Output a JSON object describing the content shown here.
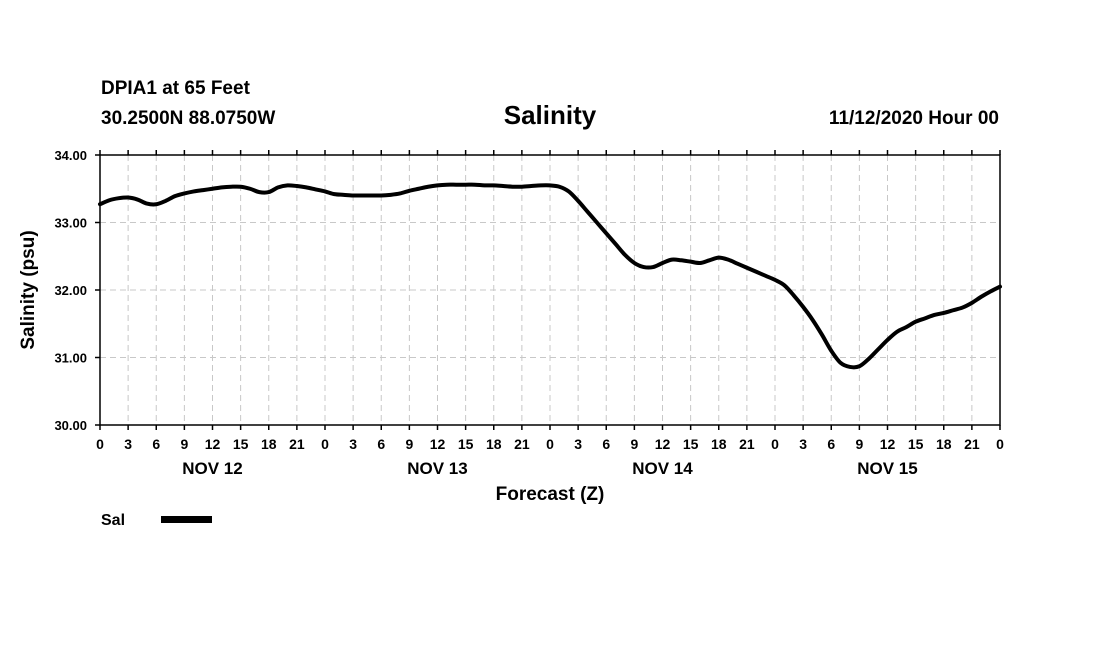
{
  "chart_data": {
    "type": "line",
    "title": "Salinity",
    "station_line1": "DPIA1 at 65 Feet",
    "station_line2": "30.2500N 88.0750W",
    "run_label": "11/12/2020 Hour 00",
    "xlabel": "Forecast (Z)",
    "ylabel": "Salinity (psu)",
    "ylim": [
      30.0,
      34.0
    ],
    "yticks": [
      "30.00",
      "31.00",
      "32.00",
      "33.00",
      "34.00"
    ],
    "xlim": [
      0,
      96
    ],
    "xtick_step_hours": 3,
    "xtick_labels": [
      "0",
      "3",
      "6",
      "9",
      "12",
      "15",
      "18",
      "21",
      "0",
      "3",
      "6",
      "9",
      "12",
      "15",
      "18",
      "21",
      "0",
      "3",
      "6",
      "9",
      "12",
      "15",
      "18",
      "21",
      "0",
      "3",
      "6",
      "9",
      "12",
      "15",
      "18",
      "21",
      "0"
    ],
    "day_labels": [
      {
        "label": "NOV 12",
        "hour": 12
      },
      {
        "label": "NOV 13",
        "hour": 36
      },
      {
        "label": "NOV 14",
        "hour": 60
      },
      {
        "label": "NOV 15",
        "hour": 84
      }
    ],
    "grid": true,
    "legend": {
      "label": "Sal",
      "placement": "bottom-left",
      "color": "#000000"
    },
    "series": [
      {
        "name": "Sal",
        "color": "#000000",
        "x": [
          0,
          1,
          2,
          3,
          4,
          5,
          6,
          7,
          8,
          9,
          10,
          11,
          12,
          13,
          14,
          15,
          16,
          17,
          18,
          19,
          20,
          21,
          22,
          23,
          24,
          25,
          26,
          27,
          28,
          29,
          30,
          31,
          32,
          33,
          34,
          35,
          36,
          37,
          38,
          39,
          40,
          41,
          42,
          43,
          44,
          45,
          46,
          47,
          48,
          49,
          50,
          51,
          52,
          53,
          54,
          55,
          56,
          57,
          58,
          59,
          60,
          61,
          62,
          63,
          64,
          65,
          66,
          67,
          68,
          69,
          70,
          71,
          72,
          73,
          74,
          75,
          76,
          77,
          78,
          79,
          80,
          81,
          82,
          83,
          84,
          85,
          86,
          87,
          88,
          89,
          90,
          91,
          92,
          93,
          94,
          95,
          96
        ],
        "values": [
          33.27,
          33.33,
          33.36,
          33.37,
          33.34,
          33.28,
          33.27,
          33.32,
          33.39,
          33.43,
          33.46,
          33.48,
          33.5,
          33.52,
          33.53,
          33.53,
          33.5,
          33.45,
          33.45,
          33.52,
          33.55,
          33.54,
          33.52,
          33.49,
          33.46,
          33.42,
          33.41,
          33.4,
          33.4,
          33.4,
          33.4,
          33.41,
          33.43,
          33.47,
          33.5,
          33.53,
          33.55,
          33.56,
          33.56,
          33.56,
          33.56,
          33.55,
          33.55,
          33.54,
          33.53,
          33.53,
          33.54,
          33.55,
          33.55,
          33.53,
          33.46,
          33.32,
          33.16,
          33.0,
          32.84,
          32.68,
          32.52,
          32.4,
          32.34,
          32.34,
          32.4,
          32.45,
          32.44,
          32.42,
          32.4,
          32.44,
          32.48,
          32.45,
          32.39,
          32.33,
          32.27,
          32.21,
          32.15,
          32.07,
          31.92,
          31.75,
          31.56,
          31.34,
          31.1,
          30.92,
          30.86,
          30.87,
          30.98,
          31.12,
          31.26,
          31.38,
          31.45,
          31.53,
          31.58,
          31.63,
          31.66,
          31.7,
          31.74,
          31.81,
          31.9,
          31.98,
          32.05
        ]
      }
    ]
  }
}
